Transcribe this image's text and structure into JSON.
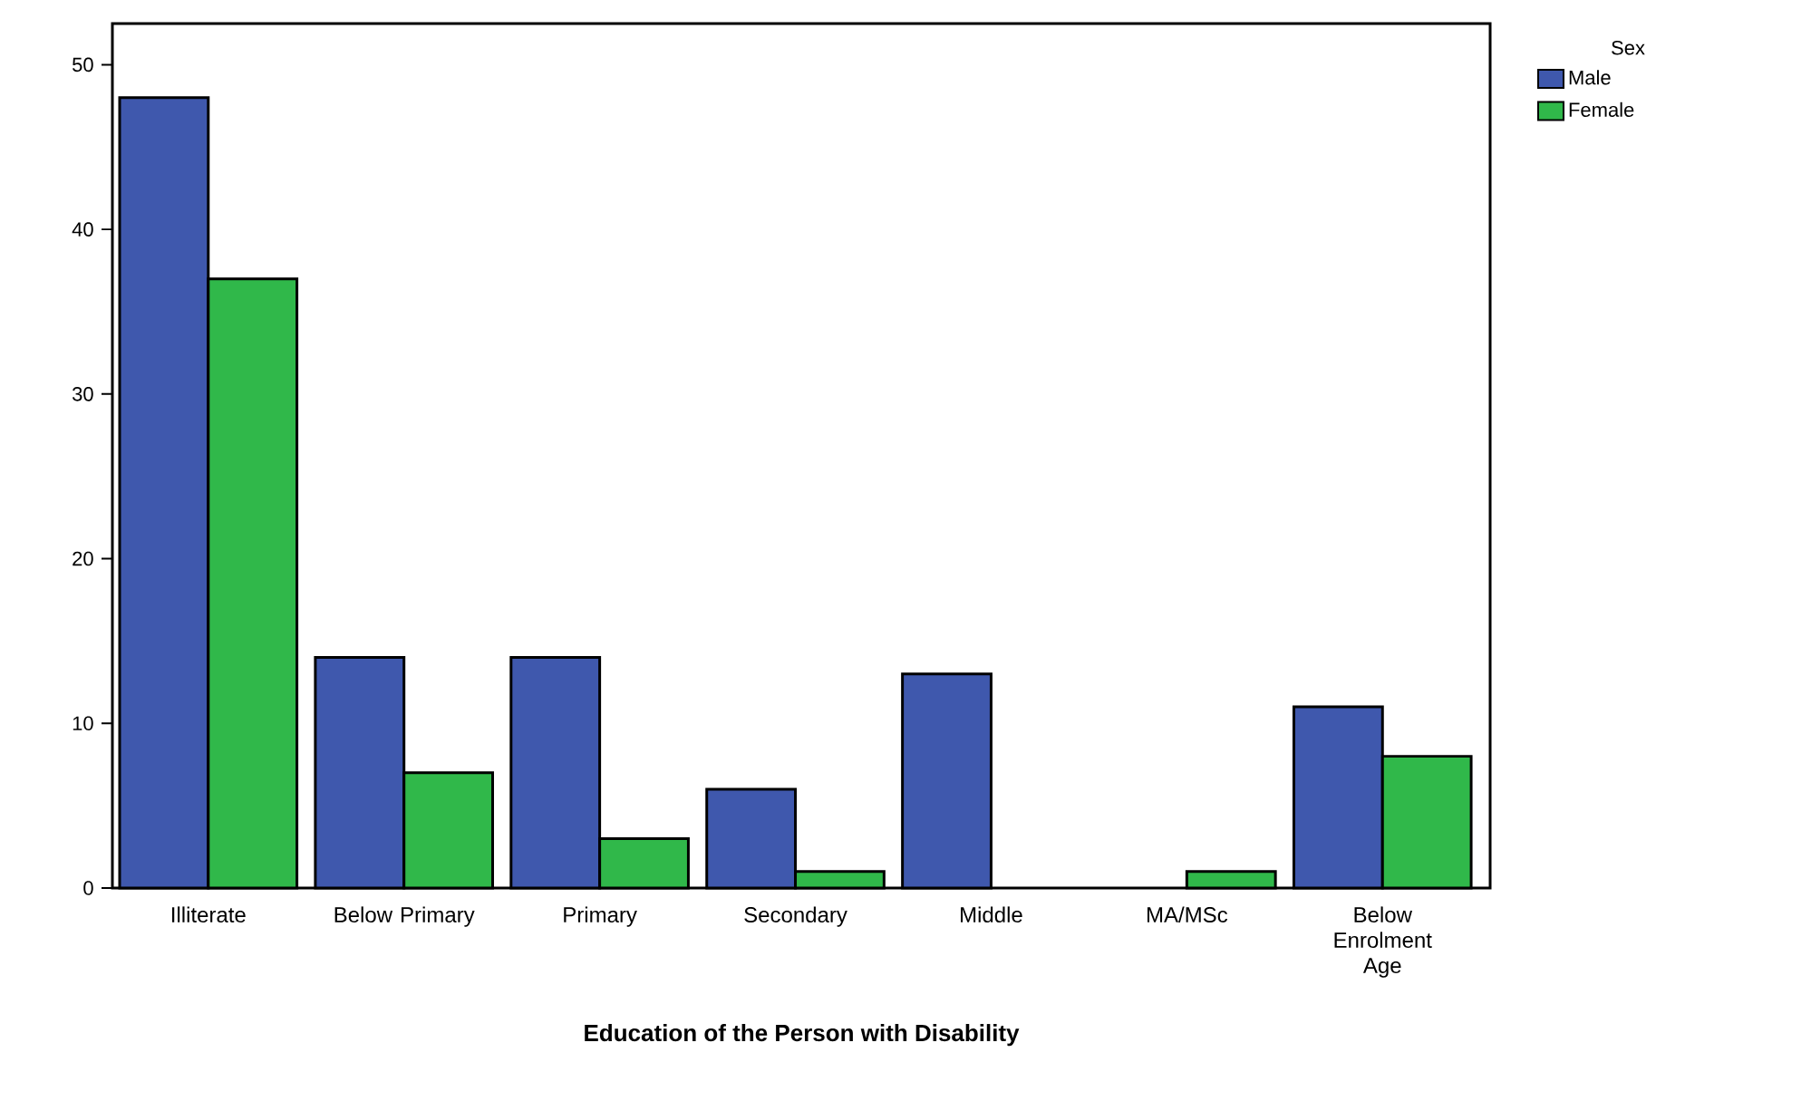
{
  "chart_data": {
    "type": "bar",
    "xlabel": "Education of the Person with Disability",
    "categories": [
      "Illiterate",
      "Below Primary",
      "Primary",
      "Secondary",
      "Middle",
      "MA/MSc",
      "Below Enrolment Age"
    ],
    "series": [
      {
        "name": "Male",
        "color": "#3f58ad",
        "values": [
          48,
          14,
          14,
          6,
          13,
          null,
          11
        ]
      },
      {
        "name": "Female",
        "color": "#30b84a",
        "values": [
          37,
          7,
          3,
          1,
          null,
          1,
          8
        ]
      }
    ],
    "legend_title": "Sex",
    "legend": "top right",
    "grid": false,
    "ylim": [
      0,
      52.5
    ],
    "yticks": [
      0,
      10,
      20,
      30,
      40,
      50
    ]
  }
}
